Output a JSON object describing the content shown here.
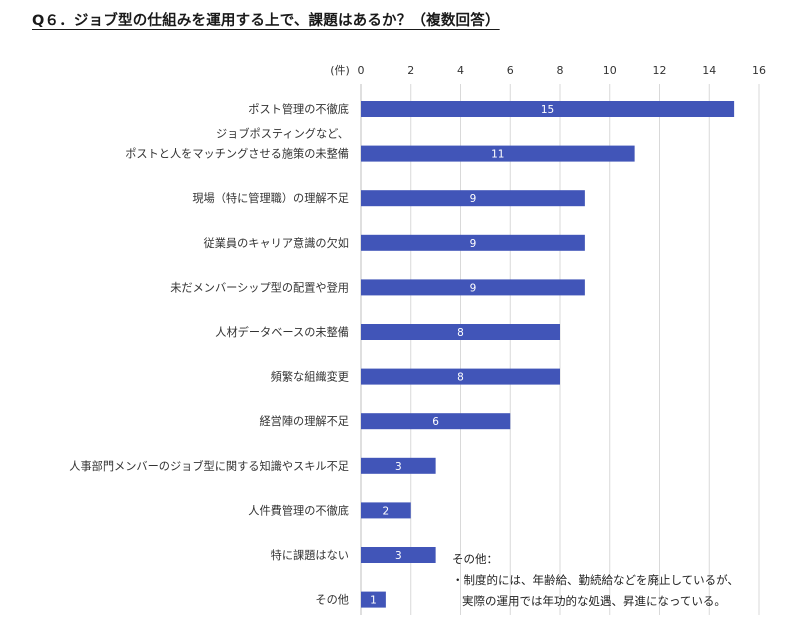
{
  "page": {
    "title": "Q６．ジョブ型の仕組みを運用する上で、課題はあるか？（複数回答）"
  },
  "chart_data": {
    "type": "bar",
    "orientation": "horizontal",
    "title": "Q６．ジョブ型の仕組みを運用する上で、課題はあるか？（複数回答）",
    "unit_label": "(件)",
    "xlim": [
      0,
      16
    ],
    "x_ticks": [
      0,
      2,
      4,
      6,
      8,
      10,
      12,
      14,
      16
    ],
    "grid": true,
    "bar_color": "#4155b8",
    "label_color": "#ffffff",
    "categories": [
      [
        "ポスト管理の不徹底"
      ],
      [
        "ジョブポスティングなど、",
        "ポストと人をマッチングさせる施策の未整備"
      ],
      [
        "現場（特に管理職）の理解不足"
      ],
      [
        "従業員のキャリア意識の欠如"
      ],
      [
        "未だメンバーシップ型の配置や登用"
      ],
      [
        "人材データベースの未整備"
      ],
      [
        "頻繁な組織変更"
      ],
      [
        "経営陣の理解不足"
      ],
      [
        "人事部門メンバーのジョブ型に関する知識やスキル不足"
      ],
      [
        "人件費管理の不徹底"
      ],
      [
        "特に課題はない"
      ],
      [
        "その他"
      ]
    ],
    "values": [
      15,
      11,
      9,
      9,
      9,
      8,
      8,
      6,
      3,
      2,
      3,
      1
    ]
  },
  "note": {
    "heading": "その他：",
    "line1": "・制度的には、年齢給、勤続給などを廃止しているが、",
    "line2": "実際の運用では年功的な処遇、昇進になっている。"
  }
}
